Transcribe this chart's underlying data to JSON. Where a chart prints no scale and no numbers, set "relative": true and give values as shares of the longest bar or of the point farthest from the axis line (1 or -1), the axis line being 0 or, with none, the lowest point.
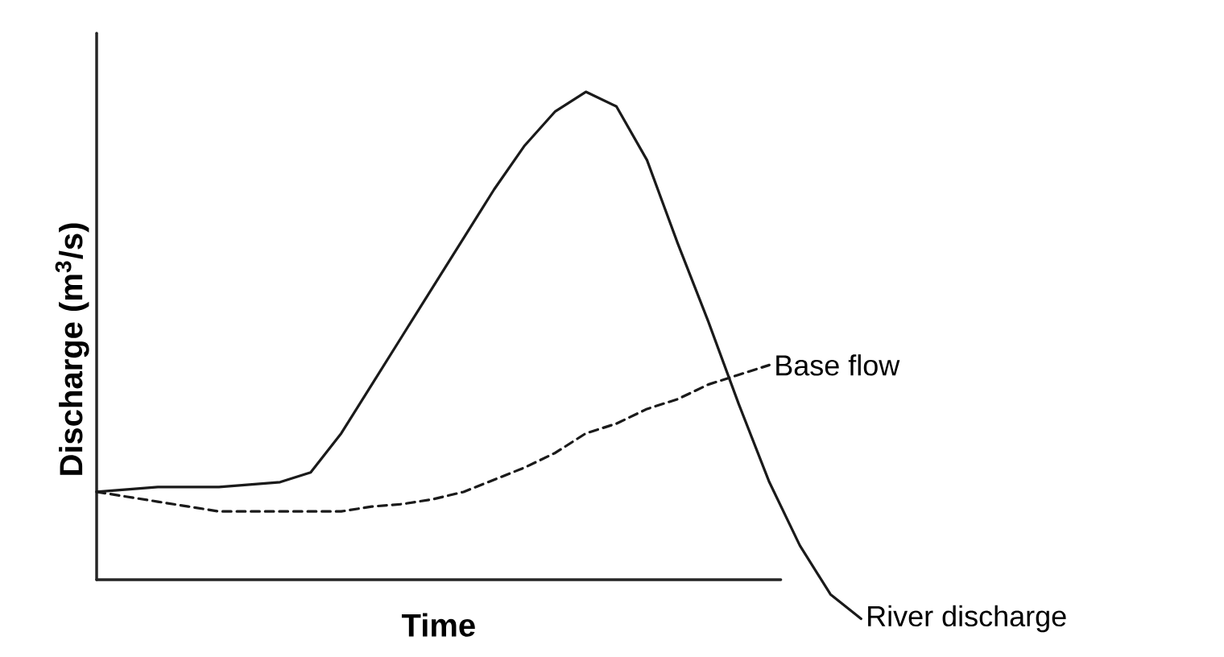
{
  "chart_data": {
    "type": "line",
    "relative": true,
    "xlabel": "Time",
    "ylabel": "Discharge (m$^{3}$/s)",
    "marker": "none",
    "categories": [
      null,
      null,
      null,
      null,
      null,
      null,
      null,
      null,
      null,
      null,
      null,
      null,
      null,
      null,
      null,
      null,
      null,
      null,
      null,
      null,
      null,
      null,
      null,
      null,
      null,
      null
    ],
    "series": [
      {
        "name": "River discharge",
        "color": "#1a1a1a",
        "line_style": "solid",
        "values": [
          0.18,
          0.185,
          0.19,
          0.19,
          0.19,
          0.195,
          0.2,
          0.22,
          0.3,
          0.4,
          0.5,
          0.6,
          0.7,
          0.8,
          0.89,
          0.96,
          1.0,
          0.97,
          0.86,
          0.69,
          0.53,
          0.36,
          0.2,
          0.07,
          -0.03,
          -0.08
        ]
      },
      {
        "name": "Base flow",
        "color": "#1a1a1a",
        "line_style": "dashed",
        "values": [
          0.18,
          0.17,
          0.16,
          0.15,
          0.14,
          0.14,
          0.14,
          0.14,
          0.14,
          0.15,
          0.155,
          0.165,
          0.18,
          0.205,
          0.23,
          0.26,
          0.3,
          0.32,
          0.35,
          0.37,
          0.4,
          0.42,
          0.44,
          null,
          null,
          null
        ]
      }
    ]
  }
}
